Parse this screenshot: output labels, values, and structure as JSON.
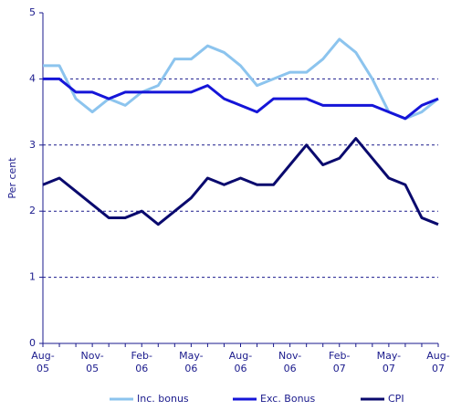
{
  "chart_data": {
    "type": "line",
    "y_label": "Per cent",
    "categories": [
      [
        "Aug-",
        "05"
      ],
      null,
      null,
      [
        "Nov-",
        "05"
      ],
      null,
      null,
      [
        "Feb-",
        "06"
      ],
      null,
      null,
      [
        "May-",
        "06"
      ],
      null,
      null,
      [
        "Aug-",
        "06"
      ],
      null,
      null,
      [
        "Nov-",
        "06"
      ],
      null,
      null,
      [
        "Feb-",
        "07"
      ],
      null,
      null,
      [
        "May-",
        "07"
      ],
      null,
      null,
      [
        "Aug-",
        "07"
      ]
    ],
    "series": [
      {
        "name": "Inc. bonus",
        "color": "#8cc4ee",
        "values": [
          4.2,
          4.2,
          3.7,
          3.5,
          3.7,
          3.6,
          3.8,
          3.9,
          4.3,
          4.3,
          4.5,
          4.4,
          4.2,
          3.9,
          4.0,
          4.1,
          4.1,
          4.3,
          4.6,
          4.4,
          4.0,
          3.5,
          3.4,
          3.5,
          3.7
        ]
      },
      {
        "name": "Exc. Bonus",
        "color": "#1515d8",
        "values": [
          4.0,
          4.0,
          3.8,
          3.8,
          3.7,
          3.8,
          3.8,
          3.8,
          3.8,
          3.8,
          3.9,
          3.7,
          3.6,
          3.5,
          3.7,
          3.7,
          3.7,
          3.6,
          3.6,
          3.6,
          3.6,
          3.5,
          3.4,
          3.6,
          3.7
        ]
      },
      {
        "name": "CPI",
        "color": "#0a0a6e",
        "values": [
          2.4,
          2.5,
          2.3,
          2.1,
          1.9,
          1.9,
          2.0,
          1.8,
          2.0,
          2.2,
          2.5,
          2.4,
          2.5,
          2.4,
          2.4,
          2.7,
          3.0,
          2.7,
          2.8,
          3.1,
          2.8,
          2.5,
          2.4,
          1.9,
          1.8
        ]
      }
    ],
    "ylim": [
      0,
      5
    ],
    "yticks": [
      0,
      1,
      2,
      3,
      4,
      5
    ],
    "grid": true,
    "legend": "bottom"
  }
}
